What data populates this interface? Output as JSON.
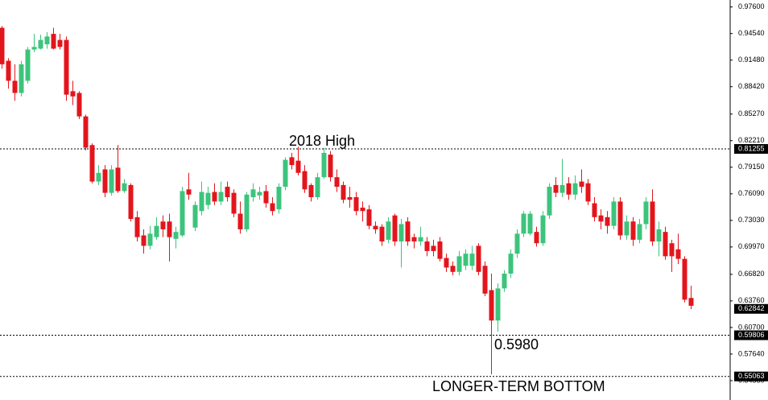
{
  "chart_data": {
    "type": "candlestick",
    "ylim": [
      0.53,
      0.984
    ],
    "yticks": [
      {
        "value": 0.976,
        "label": "0.97600"
      },
      {
        "value": 0.9454,
        "label": "0.94540"
      },
      {
        "value": 0.9148,
        "label": "0.91480"
      },
      {
        "value": 0.8842,
        "label": "0.88420"
      },
      {
        "value": 0.8527,
        "label": "0.85270"
      },
      {
        "value": 0.8221,
        "label": "0.82210"
      },
      {
        "value": 0.7915,
        "label": "0.79150"
      },
      {
        "value": 0.7609,
        "label": "0.76090"
      },
      {
        "value": 0.7303,
        "label": "0.73030"
      },
      {
        "value": 0.6997,
        "label": "0.69970"
      },
      {
        "value": 0.6682,
        "label": "0.66820"
      },
      {
        "value": 0.6376,
        "label": "0.63760"
      },
      {
        "value": 0.607,
        "label": "0.60700"
      },
      {
        "value": 0.5764,
        "label": "0.57640"
      },
      {
        "value": 0.5458,
        "label": "0.54580"
      }
    ],
    "up_color": "#3cc47c",
    "down_color": "#e3151c",
    "open": [
      0.952,
      0.914,
      0.891,
      0.877,
      0.891,
      0.927,
      0.928,
      0.933,
      0.945,
      0.938,
      0.938,
      0.879,
      0.877,
      0.85,
      0.817,
      0.775,
      0.789,
      0.762,
      0.791,
      0.764,
      0.771,
      0.734,
      0.713,
      0.701,
      0.711,
      0.729,
      0.729,
      0.709,
      0.713,
      0.766,
      0.722,
      0.741,
      0.748,
      0.763,
      0.752,
      0.769,
      0.762,
      0.738,
      0.72,
      0.757,
      0.759,
      0.764,
      0.75,
      0.743,
      0.769,
      0.803,
      0.799,
      0.787,
      0.771,
      0.757,
      0.78,
      0.806,
      0.78,
      0.771,
      0.757,
      0.757,
      0.745,
      0.743,
      0.724,
      0.723,
      0.708,
      0.736,
      0.706,
      0.729,
      0.711,
      0.706,
      0.706,
      0.701,
      0.706,
      0.687,
      0.678,
      0.671,
      0.678,
      0.678,
      0.701,
      0.678,
      0.65,
      0.615,
      0.652,
      0.669,
      0.692,
      0.715,
      0.715,
      0.717,
      0.704,
      0.736,
      0.771,
      0.762,
      0.773,
      0.76,
      0.775,
      0.773,
      0.75,
      0.736,
      0.734,
      0.724,
      0.752,
      0.713,
      0.729,
      0.708,
      0.726,
      0.752,
      0.706,
      0.717,
      0.704,
      0.697,
      0.686,
      0.641
    ],
    "high": [
      0.954,
      0.917,
      0.91,
      0.914,
      0.93,
      0.945,
      0.944,
      0.947,
      0.952,
      0.945,
      0.942,
      0.891,
      0.879,
      0.852,
      0.819,
      0.794,
      0.794,
      0.794,
      0.817,
      0.778,
      0.773,
      0.741,
      0.72,
      0.724,
      0.734,
      0.736,
      0.738,
      0.723,
      0.769,
      0.785,
      0.752,
      0.775,
      0.769,
      0.773,
      0.775,
      0.775,
      0.766,
      0.752,
      0.763,
      0.773,
      0.769,
      0.771,
      0.757,
      0.773,
      0.803,
      0.808,
      0.815,
      0.794,
      0.773,
      0.785,
      0.814,
      0.81,
      0.789,
      0.775,
      0.769,
      0.763,
      0.752,
      0.748,
      0.729,
      0.726,
      0.734,
      0.738,
      0.732,
      0.734,
      0.715,
      0.723,
      0.711,
      0.708,
      0.711,
      0.692,
      0.683,
      0.695,
      0.697,
      0.701,
      0.704,
      0.683,
      0.669,
      0.658,
      0.673,
      0.697,
      0.72,
      0.741,
      0.741,
      0.723,
      0.741,
      0.773,
      0.78,
      0.801,
      0.78,
      0.782,
      0.789,
      0.778,
      0.757,
      0.743,
      0.741,
      0.757,
      0.757,
      0.736,
      0.734,
      0.732,
      0.757,
      0.766,
      0.729,
      0.723,
      0.708,
      0.715,
      0.689,
      0.655
    ],
    "low": [
      0.905,
      0.882,
      0.868,
      0.873,
      0.888,
      0.924,
      0.927,
      0.928,
      0.927,
      0.927,
      0.868,
      0.863,
      0.847,
      0.811,
      0.773,
      0.771,
      0.757,
      0.759,
      0.762,
      0.762,
      0.729,
      0.706,
      0.692,
      0.697,
      0.708,
      0.711,
      0.683,
      0.698,
      0.711,
      0.754,
      0.718,
      0.736,
      0.743,
      0.748,
      0.748,
      0.752,
      0.734,
      0.715,
      0.717,
      0.752,
      0.754,
      0.745,
      0.736,
      0.738,
      0.765,
      0.789,
      0.782,
      0.762,
      0.752,
      0.754,
      0.778,
      0.775,
      0.763,
      0.75,
      0.745,
      0.736,
      0.729,
      0.72,
      0.715,
      0.701,
      0.704,
      0.701,
      0.676,
      0.701,
      0.698,
      0.701,
      0.689,
      0.689,
      0.683,
      0.671,
      0.667,
      0.667,
      0.673,
      0.673,
      0.667,
      0.643,
      0.553,
      0.602,
      0.648,
      0.664,
      0.687,
      0.711,
      0.713,
      0.7,
      0.701,
      0.732,
      0.757,
      0.757,
      0.754,
      0.754,
      0.762,
      0.748,
      0.729,
      0.72,
      0.715,
      0.72,
      0.708,
      0.708,
      0.701,
      0.704,
      0.72,
      0.701,
      0.689,
      0.685,
      0.671,
      0.68,
      0.636,
      0.628
    ],
    "close": [
      0.91,
      0.891,
      0.877,
      0.91,
      0.927,
      0.93,
      0.938,
      0.942,
      0.928,
      0.93,
      0.875,
      0.873,
      0.85,
      0.814,
      0.775,
      0.785,
      0.762,
      0.789,
      0.764,
      0.773,
      0.732,
      0.711,
      0.701,
      0.715,
      0.724,
      0.72,
      0.711,
      0.717,
      0.764,
      0.76,
      0.748,
      0.763,
      0.762,
      0.752,
      0.763,
      0.757,
      0.738,
      0.72,
      0.76,
      0.766,
      0.763,
      0.75,
      0.741,
      0.769,
      0.8,
      0.794,
      0.785,
      0.766,
      0.757,
      0.78,
      0.808,
      0.78,
      0.769,
      0.754,
      0.754,
      0.741,
      0.741,
      0.724,
      0.72,
      0.706,
      0.729,
      0.706,
      0.726,
      0.706,
      0.706,
      0.711,
      0.695,
      0.695,
      0.686,
      0.676,
      0.671,
      0.689,
      0.692,
      0.692,
      0.671,
      0.646,
      0.615,
      0.652,
      0.669,
      0.692,
      0.715,
      0.738,
      0.738,
      0.704,
      0.736,
      0.769,
      0.762,
      0.771,
      0.76,
      0.773,
      0.769,
      0.752,
      0.734,
      0.729,
      0.724,
      0.752,
      0.713,
      0.729,
      0.708,
      0.726,
      0.752,
      0.706,
      0.72,
      0.689,
      0.689,
      0.686,
      0.639,
      0.632
    ],
    "levels": [
      0.81255,
      0.59806,
      0.55063
    ],
    "last_price": 0.62842,
    "annotations": [
      "2018 High",
      "0.5980",
      "LONGER-TERM BOTTOM"
    ]
  }
}
